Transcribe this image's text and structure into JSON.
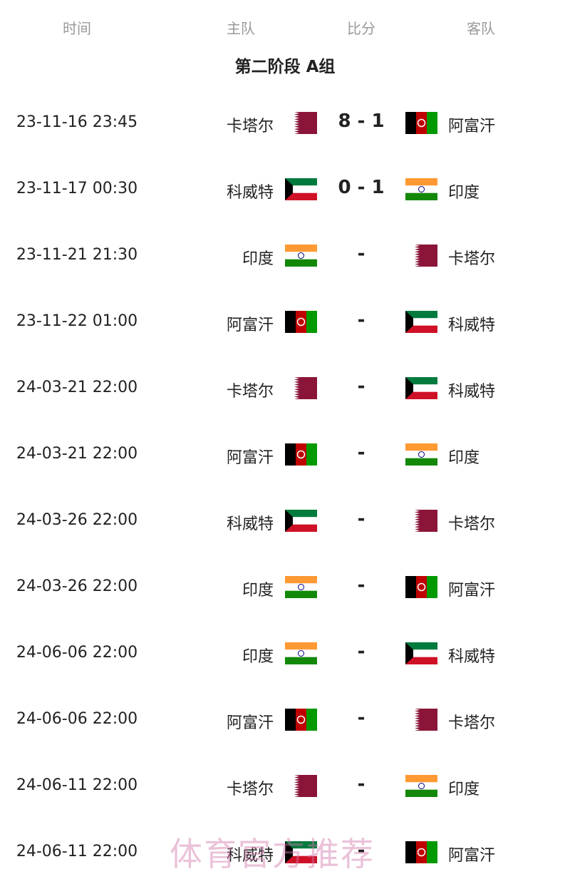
{
  "headers": {
    "time": "时间",
    "home": "主队",
    "score": "比分",
    "away": "客队"
  },
  "group_title": "第二阶段 A组",
  "flag_colors": {
    "qatar": "#8a1538",
    "kuwait_green": "#007a3d",
    "kuwait_red": "#ce1126",
    "india_saffron": "#ff9933",
    "india_green": "#138808",
    "afghanistan_red": "#be0000",
    "afghanistan_green": "#009900"
  },
  "matches": [
    {
      "time": "23-11-16 23:45",
      "home": "卡塔尔",
      "home_flag": "qatar",
      "score": "8 - 1",
      "away": "阿富汗",
      "away_flag": "afghanistan"
    },
    {
      "time": "23-11-17 00:30",
      "home": "科威特",
      "home_flag": "kuwait",
      "score": "0 - 1",
      "away": "印度",
      "away_flag": "india"
    },
    {
      "time": "23-11-21 21:30",
      "home": "印度",
      "home_flag": "india",
      "score": "-",
      "away": "卡塔尔",
      "away_flag": "qatar"
    },
    {
      "time": "23-11-22 01:00",
      "home": "阿富汗",
      "home_flag": "afghanistan",
      "score": "-",
      "away": "科威特",
      "away_flag": "kuwait"
    },
    {
      "time": "24-03-21 22:00",
      "home": "卡塔尔",
      "home_flag": "qatar",
      "score": "-",
      "away": "科威特",
      "away_flag": "kuwait"
    },
    {
      "time": "24-03-21 22:00",
      "home": "阿富汗",
      "home_flag": "afghanistan",
      "score": "-",
      "away": "印度",
      "away_flag": "india"
    },
    {
      "time": "24-03-26 22:00",
      "home": "科威特",
      "home_flag": "kuwait",
      "score": "-",
      "away": "卡塔尔",
      "away_flag": "qatar"
    },
    {
      "time": "24-03-26 22:00",
      "home": "印度",
      "home_flag": "india",
      "score": "-",
      "away": "阿富汗",
      "away_flag": "afghanistan"
    },
    {
      "time": "24-06-06 22:00",
      "home": "印度",
      "home_flag": "india",
      "score": "-",
      "away": "科威特",
      "away_flag": "kuwait"
    },
    {
      "time": "24-06-06 22:00",
      "home": "阿富汗",
      "home_flag": "afghanistan",
      "score": "-",
      "away": "卡塔尔",
      "away_flag": "qatar"
    },
    {
      "time": "24-06-11 22:00",
      "home": "卡塔尔",
      "home_flag": "qatar",
      "score": "-",
      "away": "印度",
      "away_flag": "india"
    },
    {
      "time": "24-06-11 22:00",
      "home": "科威特",
      "home_flag": "kuwait",
      "score": "-",
      "away": "阿富汗",
      "away_flag": "afghanistan"
    }
  ],
  "watermark": "体育官方推荐"
}
